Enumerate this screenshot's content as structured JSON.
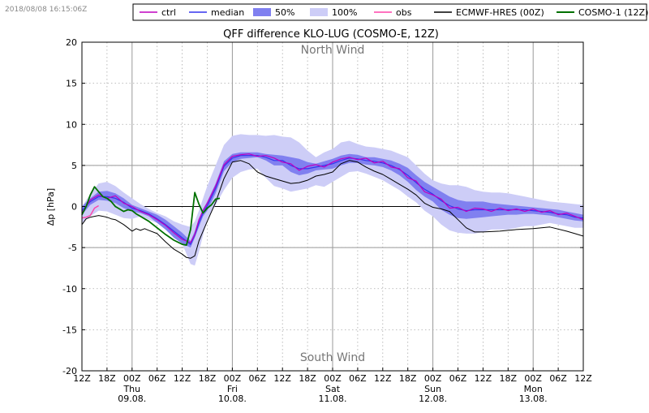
{
  "timestamp": "2018/08/08 16:15:06Z",
  "chart_data": {
    "type": "line",
    "title": "QFF difference KLO-LUG (COSMO-E, 12Z)",
    "ylabel": "Δp [hPa]",
    "xlabel": "",
    "ylim": [
      -20,
      20
    ],
    "yticks": [
      -20,
      -15,
      -10,
      -5,
      0,
      5,
      10,
      15,
      20
    ],
    "xlim": [
      0,
      120
    ],
    "grid": true,
    "legend_placement": "top",
    "annotations": {
      "top": "North Wind",
      "bottom": "South Wind"
    },
    "x_ticks": [
      {
        "x": 0,
        "label": "12Z"
      },
      {
        "x": 6,
        "label": "18Z"
      },
      {
        "x": 12,
        "label": "00Z",
        "day": "Thu",
        "date": "09.08."
      },
      {
        "x": 18,
        "label": "06Z"
      },
      {
        "x": 24,
        "label": "12Z"
      },
      {
        "x": 30,
        "label": "18Z"
      },
      {
        "x": 36,
        "label": "00Z",
        "day": "Fri",
        "date": "10.08."
      },
      {
        "x": 42,
        "label": "06Z"
      },
      {
        "x": 48,
        "label": "12Z"
      },
      {
        "x": 54,
        "label": "18Z"
      },
      {
        "x": 60,
        "label": "00Z",
        "day": "Sat",
        "date": "11.08."
      },
      {
        "x": 66,
        "label": "06Z"
      },
      {
        "x": 72,
        "label": "12Z"
      },
      {
        "x": 78,
        "label": "18Z"
      },
      {
        "x": 84,
        "label": "00Z",
        "day": "Sun",
        "date": "12.08."
      },
      {
        "x": 90,
        "label": "06Z"
      },
      {
        "x": 96,
        "label": "12Z"
      },
      {
        "x": 102,
        "label": "18Z"
      },
      {
        "x": 108,
        "label": "00Z",
        "day": "Mon",
        "date": "13.08."
      },
      {
        "x": 114,
        "label": "06Z"
      },
      {
        "x": 120,
        "label": "12Z"
      }
    ],
    "legend": [
      {
        "label": "ctrl",
        "kind": "line",
        "color": "#bf00bf"
      },
      {
        "label": "median",
        "kind": "line",
        "color": "#3333ee"
      },
      {
        "label": "50%",
        "kind": "box",
        "color": "#8080f0"
      },
      {
        "label": "100%",
        "kind": "box",
        "color": "#cdcdf7"
      },
      {
        "label": "obs",
        "kind": "line",
        "color": "#ff44aa"
      },
      {
        "label": "ECMWF-HRES (00Z)",
        "kind": "line",
        "color": "#000000"
      },
      {
        "label": "COSMO-1 (12Z)",
        "kind": "line",
        "color": "#007000"
      }
    ],
    "series": [
      {
        "name": "100%",
        "kind": "band",
        "color": "#cdcdf7",
        "x": [
          0,
          2,
          4,
          6,
          8,
          10,
          12,
          14,
          16,
          18,
          20,
          22,
          24,
          26,
          27,
          28,
          29,
          30,
          32,
          34,
          36,
          38,
          40,
          42,
          44,
          46,
          48,
          50,
          52,
          54,
          56,
          58,
          60,
          62,
          64,
          66,
          68,
          70,
          72,
          74,
          76,
          78,
          80,
          82,
          84,
          86,
          88,
          90,
          92,
          94,
          96,
          98,
          100,
          102,
          104,
          106,
          108,
          110,
          112,
          114,
          116,
          118,
          120
        ],
        "lower": [
          -2,
          -1.2,
          -0.5,
          -0.6,
          -1.0,
          -1.4,
          -1.5,
          -1.2,
          -1.6,
          -2.0,
          -2.8,
          -3.5,
          -4.5,
          -7.0,
          -7.2,
          -5.5,
          -3.5,
          -1.5,
          0.2,
          2.0,
          3.5,
          4.2,
          4.5,
          4.6,
          3.5,
          2.5,
          2.2,
          1.8,
          2.0,
          2.2,
          2.6,
          2.4,
          3.0,
          3.6,
          4.2,
          4.3,
          4.0,
          3.6,
          3.2,
          2.6,
          2.0,
          1.2,
          0.5,
          -0.5,
          -1.2,
          -2.2,
          -2.9,
          -3.2,
          -3.3,
          -3.3,
          -3.1,
          -2.8,
          -2.8,
          -2.8,
          -2.6,
          -2.4,
          -2.4,
          -2.2,
          -2.0,
          -2.2,
          -2.4,
          -2.6,
          -2.6
        ],
        "upper": [
          0,
          1.5,
          2.8,
          3.0,
          2.5,
          1.7,
          1.0,
          0.3,
          -0.3,
          -0.8,
          -1.2,
          -1.8,
          -2.2,
          -2.5,
          -1.8,
          -0.5,
          1.0,
          2.5,
          5.0,
          7.5,
          8.6,
          8.8,
          8.7,
          8.7,
          8.6,
          8.7,
          8.5,
          8.4,
          7.8,
          6.8,
          6.0,
          6.6,
          7.0,
          7.8,
          8.0,
          7.6,
          7.3,
          7.2,
          7.0,
          6.8,
          6.4,
          6.0,
          5.0,
          4.0,
          3.2,
          2.8,
          2.6,
          2.6,
          2.4,
          2.0,
          1.8,
          1.7,
          1.7,
          1.6,
          1.4,
          1.2,
          1.0,
          0.8,
          0.6,
          0.5,
          0.4,
          0.3,
          0.2
        ]
      },
      {
        "name": "50%",
        "kind": "band",
        "color": "#8080f0",
        "x": [
          0,
          2,
          4,
          6,
          8,
          10,
          12,
          14,
          16,
          18,
          20,
          22,
          24,
          26,
          27,
          28,
          29,
          30,
          32,
          34,
          36,
          38,
          40,
          42,
          44,
          46,
          48,
          50,
          52,
          54,
          56,
          58,
          60,
          62,
          64,
          66,
          68,
          70,
          72,
          74,
          76,
          78,
          80,
          82,
          84,
          86,
          88,
          90,
          92,
          94,
          96,
          98,
          100,
          102,
          104,
          106,
          108,
          110,
          112,
          114,
          116,
          118,
          120
        ],
        "lower": [
          -1,
          0.2,
          0.8,
          0.7,
          0.4,
          -0.2,
          -0.6,
          -0.8,
          -1.2,
          -2.0,
          -2.8,
          -3.8,
          -4.5,
          -5.0,
          -3.8,
          -2.5,
          -1.2,
          -0.5,
          1.6,
          4.3,
          5.4,
          5.8,
          5.9,
          6.0,
          5.6,
          5.0,
          5.0,
          4.2,
          3.8,
          4.0,
          4.4,
          4.5,
          4.6,
          5.0,
          5.3,
          5.3,
          5.1,
          5.0,
          4.8,
          4.4,
          3.8,
          3.0,
          2.0,
          1.2,
          0.6,
          -0.4,
          -1.0,
          -1.4,
          -1.5,
          -1.4,
          -1.3,
          -1.2,
          -1.1,
          -1.0,
          -1.0,
          -0.9,
          -0.9,
          -1.0,
          -1.1,
          -1.3,
          -1.5,
          -1.7,
          -1.8
        ],
        "upper": [
          0,
          1.0,
          1.8,
          1.9,
          1.6,
          1.0,
          0.2,
          -0.2,
          -0.6,
          -1.0,
          -1.6,
          -2.4,
          -3.2,
          -4.2,
          -3.0,
          -1.5,
          -0.3,
          0.6,
          2.8,
          5.5,
          6.4,
          6.6,
          6.6,
          6.6,
          6.4,
          6.3,
          6.2,
          6.0,
          5.8,
          5.4,
          5.2,
          5.5,
          5.8,
          6.2,
          6.4,
          6.3,
          6.0,
          6.0,
          5.8,
          5.6,
          5.2,
          4.7,
          3.8,
          3.0,
          2.4,
          1.8,
          1.2,
          0.8,
          0.6,
          0.6,
          0.6,
          0.4,
          0.3,
          0.2,
          0.1,
          0.0,
          -0.1,
          -0.2,
          -0.3,
          -0.4,
          -0.6,
          -0.8,
          -1.0
        ]
      },
      {
        "name": "median",
        "kind": "line",
        "color": "#3333ee",
        "width": 1.2,
        "x": [
          0,
          2,
          4,
          6,
          8,
          10,
          12,
          14,
          16,
          18,
          20,
          22,
          24,
          26,
          27,
          28,
          29,
          30,
          32,
          34,
          36,
          38,
          40,
          42,
          44,
          46,
          48,
          50,
          52,
          54,
          56,
          58,
          60,
          62,
          64,
          66,
          68,
          70,
          72,
          74,
          76,
          78,
          80,
          82,
          84,
          86,
          88,
          90,
          92,
          94,
          96,
          98,
          100,
          102,
          104,
          106,
          108,
          110,
          112,
          114,
          116,
          118,
          120
        ],
        "y": [
          -0.5,
          0.6,
          1.2,
          1.2,
          1.0,
          0.5,
          -0.2,
          -0.5,
          -0.9,
          -1.5,
          -2.2,
          -3.0,
          -3.8,
          -4.6,
          -3.5,
          -2.0,
          -0.8,
          0.1,
          2.2,
          4.9,
          5.9,
          6.2,
          6.2,
          6.2,
          6.0,
          5.6,
          5.6,
          5.0,
          4.6,
          4.6,
          4.8,
          5.0,
          5.2,
          5.6,
          5.9,
          5.8,
          5.6,
          5.5,
          5.3,
          5.0,
          4.5,
          3.8,
          2.9,
          2.1,
          1.5,
          0.7,
          0.1,
          -0.3,
          -0.5,
          -0.4,
          -0.4,
          -0.4,
          -0.4,
          -0.4,
          -0.4,
          -0.4,
          -0.5,
          -0.6,
          -0.7,
          -0.9,
          -1.0,
          -1.3,
          -1.4
        ]
      },
      {
        "name": "ctrl",
        "kind": "line",
        "color": "#bf00bf",
        "width": 1.2,
        "x": [
          0,
          2,
          4,
          6,
          8,
          10,
          12,
          14,
          16,
          18,
          20,
          22,
          24,
          26,
          27,
          28,
          29,
          30,
          32,
          34,
          36,
          38,
          40,
          42,
          44,
          46,
          48,
          50,
          52,
          54,
          56,
          58,
          60,
          62,
          64,
          66,
          68,
          70,
          72,
          74,
          76,
          78,
          80,
          82,
          84,
          86,
          88,
          90,
          92,
          94,
          96,
          98,
          100,
          102,
          104,
          106,
          108,
          110,
          112,
          114,
          116,
          118,
          120
        ],
        "y": [
          -0.8,
          0.8,
          1.4,
          1.0,
          1.3,
          0.4,
          0.0,
          -0.6,
          -1.0,
          -1.6,
          -2.3,
          -3.2,
          -4.0,
          -4.4,
          -3.4,
          -1.6,
          -0.5,
          0.4,
          2.5,
          5.1,
          6.1,
          6.3,
          6.4,
          6.1,
          6.2,
          5.9,
          5.4,
          5.2,
          4.4,
          4.9,
          5.1,
          4.8,
          5.4,
          5.8,
          6.0,
          5.7,
          5.9,
          5.3,
          5.5,
          4.8,
          4.6,
          3.5,
          3.1,
          1.8,
          1.4,
          0.9,
          -0.2,
          -0.1,
          -0.6,
          -0.2,
          -0.3,
          -0.6,
          -0.2,
          -0.5,
          -0.3,
          -0.6,
          -0.3,
          -0.7,
          -0.5,
          -1.0,
          -0.8,
          -1.2,
          -1.6
        ]
      },
      {
        "name": "ECMWF-HRES (00Z)",
        "kind": "line",
        "color": "#000000",
        "width": 1.0,
        "x": [
          0,
          1,
          2,
          3,
          4,
          5,
          6,
          7,
          8,
          9,
          10,
          11,
          12,
          13,
          14,
          15,
          16,
          18,
          20,
          22,
          24,
          25,
          26,
          27,
          28,
          29,
          30,
          32,
          34,
          36,
          38,
          40,
          42,
          44,
          46,
          48,
          50,
          52,
          54,
          56,
          58,
          60,
          62,
          64,
          66,
          68,
          70,
          72,
          74,
          76,
          78,
          80,
          82,
          84,
          86,
          88,
          90,
          92,
          94,
          96,
          100,
          104,
          108,
          112,
          116,
          118,
          120
        ],
        "y": [
          -2.2,
          -1.5,
          -1.3,
          -1.2,
          -1.1,
          -1.2,
          -1.3,
          -1.5,
          -1.6,
          -1.9,
          -2.2,
          -2.6,
          -3.0,
          -2.7,
          -2.9,
          -2.7,
          -2.9,
          -3.3,
          -4.3,
          -5.2,
          -5.8,
          -6.2,
          -6.3,
          -6.0,
          -4.2,
          -3.0,
          -1.8,
          0.5,
          3.4,
          5.4,
          5.6,
          5.2,
          4.2,
          3.7,
          3.4,
          3.1,
          2.8,
          2.9,
          3.2,
          3.7,
          3.9,
          4.2,
          5.2,
          5.6,
          5.4,
          4.8,
          4.3,
          3.9,
          3.3,
          2.7,
          2.1,
          1.4,
          0.4,
          -0.1,
          -0.3,
          -0.6,
          -1.6,
          -2.6,
          -3.1,
          -3.1,
          -3.0,
          -2.8,
          -2.7,
          -2.5,
          -3.0,
          -3.3,
          -3.6
        ]
      },
      {
        "name": "COSMO-1 (12Z)",
        "kind": "line",
        "color": "#007000",
        "width": 1.8,
        "x": [
          0,
          1,
          2,
          3,
          4,
          5,
          6,
          7,
          8,
          9,
          10,
          11,
          12,
          13,
          14,
          16,
          18,
          20,
          22,
          24,
          25,
          26,
          27,
          28,
          29,
          30,
          31,
          32,
          33
        ],
        "y": [
          -1.0,
          0.0,
          1.4,
          2.4,
          1.8,
          1.2,
          1.0,
          0.6,
          0.0,
          -0.3,
          -0.6,
          -0.4,
          -0.5,
          -0.9,
          -1.2,
          -1.8,
          -2.6,
          -3.4,
          -4.1,
          -4.6,
          -4.7,
          -2.8,
          1.7,
          0.3,
          -0.8,
          -0.2,
          0.2,
          0.9,
          1.0
        ]
      },
      {
        "name": "obs",
        "kind": "line",
        "color": "#ff44aa",
        "width": 1.4,
        "x": [
          0,
          1,
          2,
          3,
          4
        ],
        "y": [
          -1.4,
          -1.3,
          -1.1,
          -0.2,
          0.1
        ]
      }
    ]
  }
}
